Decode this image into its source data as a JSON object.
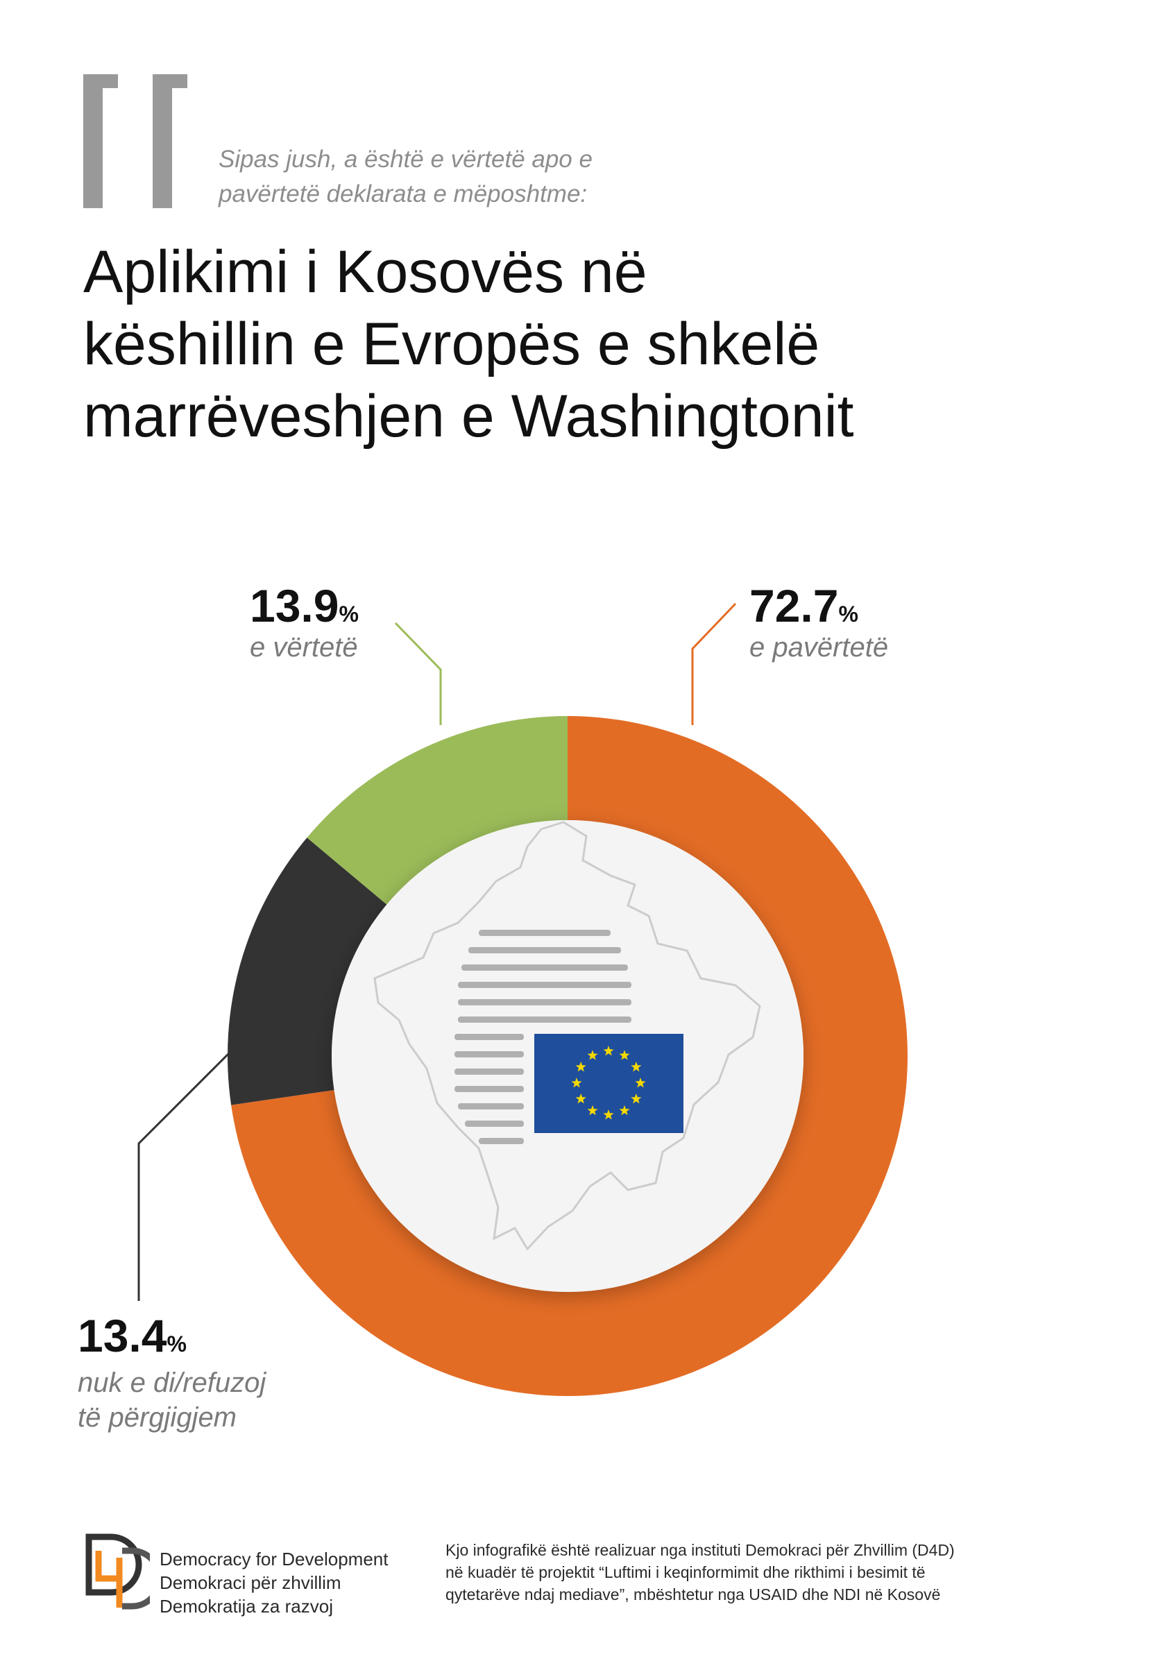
{
  "question": {
    "line1": "Sipas jush, a është e vërtetë apo e",
    "line2": "pavërtetë deklarata e mëposhtme:"
  },
  "headline": {
    "line1": "Aplikimi i Kosovës në",
    "line2": "këshillin e Evropës e shkelë",
    "line3": "marrëveshjen e Washingtonit"
  },
  "colors": {
    "orange": "#e36c25",
    "green": "#9bbb59",
    "dark": "#333333",
    "quote_gray": "#999999",
    "eu_blue": "#1f4e9c",
    "eu_star": "#f5d800"
  },
  "chart_data": {
    "type": "pie",
    "categories": [
      "e pavërtetë",
      "nuk e di/refuzoj të përgjigjem",
      "e vërtetë"
    ],
    "values": [
      72.7,
      13.4,
      13.9
    ],
    "unit": "%"
  },
  "stats": {
    "true": {
      "value": "13.9",
      "unit": "%",
      "label": "e vërtetë"
    },
    "false": {
      "value": "72.7",
      "unit": "%",
      "label": "e pavërtetë"
    },
    "dontknow": {
      "value": "13.4",
      "unit": "%",
      "label1": "nuk e di/refuzoj",
      "label2": "të përgjigjem"
    }
  },
  "footer": {
    "org_line1": "Democracy for Development",
    "org_line2": "Demokraci për zhvillim",
    "org_line3": "Demokratija za razvoj",
    "credit_line1": "Kjo infografikë është realizuar nga instituti Demokraci për Zhvillim (D4D)",
    "credit_line2": "në kuadër të projektit “Luftimi i keqinformimit dhe rikthimi i besimit të",
    "credit_line3": "qytetarëve ndaj mediave”, mbështetur nga USAID dhe NDI në Kosovë"
  }
}
